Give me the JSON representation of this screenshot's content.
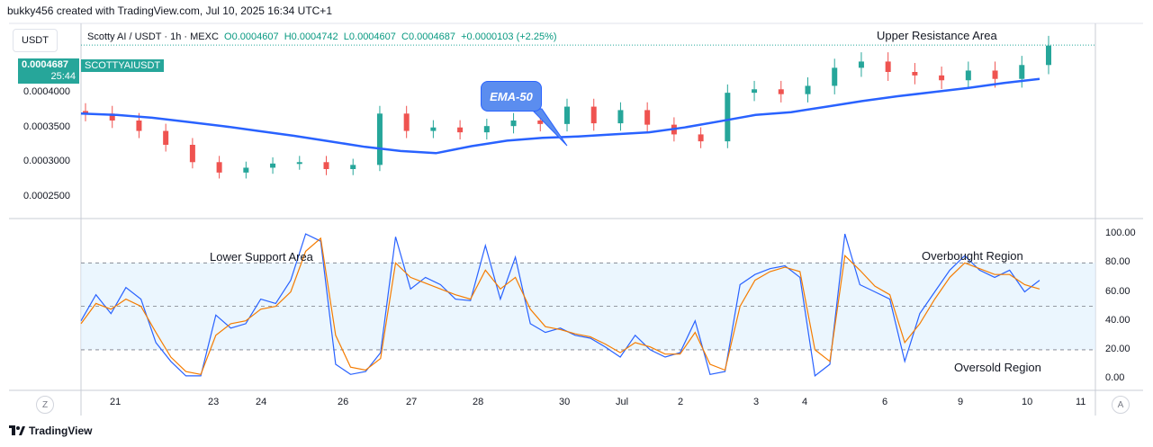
{
  "header": {
    "text": "bukky456 created with TradingView.com, Jul 10, 2025 16:34 UTC+1"
  },
  "currency": "USDT",
  "legend": {
    "symbol": "Scotty AI / USDT · 1h · MEXC",
    "o": "O0.0004607",
    "h": "H0.0004742",
    "l": "L0.0004607",
    "c": "C0.0004687",
    "change": "+0.0000103 (+2.25%)"
  },
  "price_tag": {
    "price": "0.0004687",
    "countdown": "25:44",
    "symbol": "SCOTTYAIUSDT"
  },
  "annotations": {
    "upper_resistance": "Upper Resistance Area",
    "ema": "EMA-50",
    "lower_support": "Lower Support Area",
    "overbought": "Overbought Region",
    "oversold": "Oversold Region"
  },
  "footer": {
    "brand": "TradingView"
  },
  "corner_buttons": {
    "left": "Z",
    "right": "A"
  },
  "colors": {
    "up": "#26a69a",
    "down": "#ef5350",
    "ema": "#2962ff",
    "stoch_k": "#2962ff",
    "stoch_d": "#f57c00",
    "band": "#e3f2fd"
  },
  "chart_data": [
    {
      "type": "candlestick",
      "ylim": [
        0.00022,
        0.0005
      ],
      "yticks": [
        "0.0004000",
        "0.0003500",
        "0.0003000",
        "0.0002500"
      ],
      "ytick_values": [
        0.0004,
        0.00035,
        0.0003,
        0.00025
      ],
      "xticks": [
        "21",
        "23",
        "24",
        "26",
        "27",
        "28",
        "30",
        "Jul",
        "2",
        "3",
        "4",
        "6",
        "9",
        "10",
        "11"
      ],
      "last_price": 0.0004687,
      "ema50": [
        0.00037,
        0.000368,
        0.000364,
        0.000358,
        0.000352,
        0.000345,
        0.000338,
        0.00033,
        0.000322,
        0.000316,
        0.000313,
        0.000323,
        0.000331,
        0.000335,
        0.000337,
        0.00034,
        0.000343,
        0.00035,
        0.000359,
        0.000368,
        0.000372,
        0.00038,
        0.000388,
        0.000395,
        0.000401,
        0.000407,
        0.000414,
        0.00042
      ],
      "closes": [
        0.00037,
        0.00036,
        0.000345,
        0.000325,
        0.0003,
        0.000285,
        0.000292,
        0.000298,
        0.0003,
        0.00029,
        0.000296,
        0.00037,
        0.000345,
        0.00035,
        0.000343,
        0.000352,
        0.00036,
        0.000355,
        0.00038,
        0.000356,
        0.000375,
        0.000354,
        0.00034,
        0.00033,
        0.0004,
        0.000405,
        0.000398,
        0.00041,
        0.000436,
        0.000445,
        0.00043,
        0.000425,
        0.000418,
        0.000432,
        0.00042,
        0.00044,
        0.000468
      ]
    },
    {
      "type": "line",
      "ylim": [
        -8,
        110
      ],
      "yticks": [
        "100.00",
        "80.00",
        "60.00",
        "40.00",
        "20.00",
        "0.00"
      ],
      "ytick_values": [
        100,
        80,
        60,
        40,
        20,
        0
      ],
      "band": [
        20,
        80
      ],
      "midline": 50,
      "series": [
        {
          "values": [
            40,
            58,
            45,
            63,
            55,
            25,
            12,
            2,
            2,
            44,
            35,
            38,
            55,
            52,
            68,
            100,
            95,
            10,
            3,
            5,
            18,
            98,
            62,
            70,
            65,
            55,
            54,
            92,
            55,
            84,
            38,
            32,
            35,
            30,
            28,
            22,
            15,
            30,
            20,
            15,
            18,
            40,
            3,
            5,
            65,
            72,
            76,
            78,
            70,
            2,
            10,
            100,
            65,
            60,
            55,
            12,
            45,
            60,
            75,
            85,
            75,
            70,
            75,
            60,
            68
          ]
        },
        {
          "values": [
            38,
            52,
            48,
            55,
            50,
            32,
            15,
            5,
            3,
            30,
            38,
            40,
            48,
            50,
            60,
            88,
            97,
            30,
            8,
            6,
            14,
            80,
            70,
            66,
            62,
            58,
            55,
            75,
            62,
            70,
            48,
            36,
            34,
            31,
            29,
            24,
            18,
            25,
            22,
            17,
            17,
            32,
            10,
            6,
            50,
            68,
            74,
            77,
            74,
            20,
            12,
            85,
            75,
            64,
            58,
            25,
            38,
            55,
            70,
            80,
            76,
            72,
            72,
            65,
            62
          ]
        }
      ]
    }
  ]
}
